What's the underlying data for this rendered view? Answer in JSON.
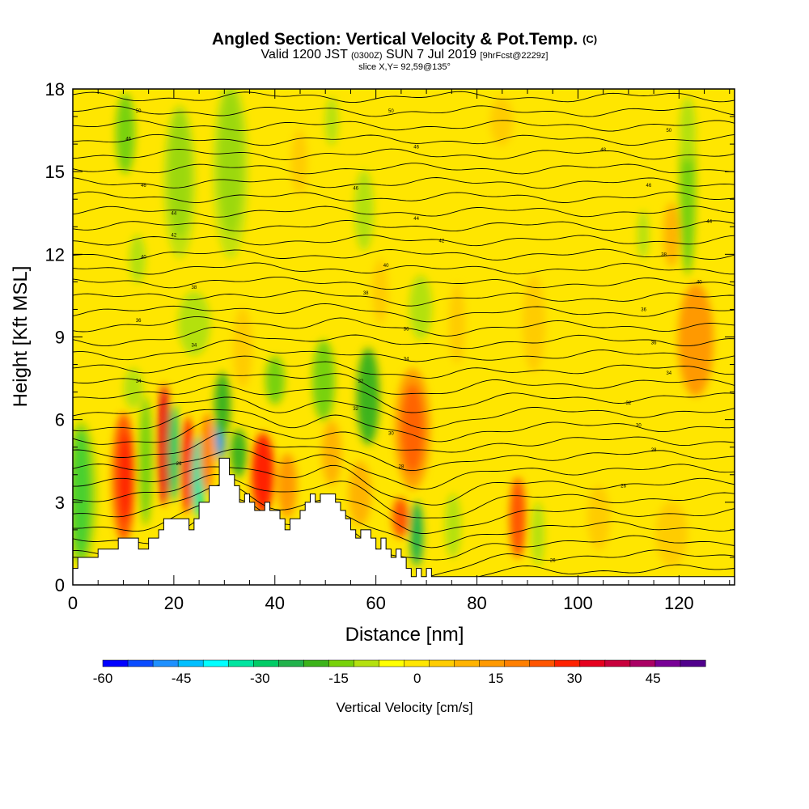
{
  "chart_data": {
    "type": "heatmap",
    "title": "Angled Section: Vertical Velocity & Pot.Temp.",
    "title_mark": "(C)",
    "subtitle_parts": [
      "Valid 1200 JST",
      "(0300Z)",
      "SUN 7 Jul 2019",
      "[9hrFcst@2229z]"
    ],
    "slice_label": "slice X,Y= 92,59@135°",
    "xlabel": "Distance [nm]",
    "ylabel": "Height [Kft MSL]",
    "xlim": [
      0,
      131
    ],
    "ylim": [
      0,
      18
    ],
    "x_ticks": [
      0,
      20,
      40,
      60,
      80,
      100,
      120
    ],
    "y_ticks": [
      0,
      3,
      6,
      9,
      12,
      15,
      18
    ],
    "colorbar": {
      "label": "Vertical Velocity [cm/s]",
      "min": -60,
      "max": 55,
      "tick_labels": [
        "-60",
        "-45",
        "-30",
        "-15",
        "0",
        "15",
        "30",
        "45"
      ],
      "colors": [
        "#0000ff",
        "#0a4cff",
        "#1e90ff",
        "#00bfff",
        "#00ffff",
        "#00e5a0",
        "#00cc66",
        "#22b24c",
        "#3cb31a",
        "#78d20a",
        "#b4e10f",
        "#ffff00",
        "#ffe600",
        "#ffcc00",
        "#ffb300",
        "#ff9900",
        "#ff7f00",
        "#ff5500",
        "#ff2200",
        "#e6001e",
        "#c8003c",
        "#aa0064",
        "#780096",
        "#50008c"
      ]
    },
    "terrain": {
      "x": [
        0,
        1,
        1,
        5,
        5,
        9,
        9,
        13,
        13,
        15,
        15,
        17,
        17,
        18,
        18,
        23,
        23,
        24,
        24,
        25,
        25,
        27,
        27,
        29,
        29,
        31,
        31,
        32,
        32,
        33,
        33,
        34,
        34,
        35,
        35,
        36,
        36,
        38,
        38,
        39,
        39,
        41,
        41,
        42,
        42,
        43,
        43,
        45,
        45,
        46,
        46,
        47,
        47,
        48,
        48,
        49,
        49,
        52,
        52,
        53,
        53,
        54,
        54,
        55,
        55,
        56,
        56,
        57,
        57,
        59,
        59,
        60,
        60,
        61,
        61,
        62,
        62,
        63,
        63,
        64,
        64,
        65,
        65,
        66,
        66,
        67,
        67,
        68,
        68,
        69,
        69,
        70,
        70,
        71,
        71,
        131
      ],
      "y": [
        0.6,
        0.6,
        1.0,
        1.0,
        1.3,
        1.3,
        1.7,
        1.7,
        1.3,
        1.3,
        1.7,
        1.7,
        2.0,
        2.0,
        2.4,
        2.4,
        2.0,
        2.0,
        2.4,
        2.4,
        3.0,
        3.0,
        3.6,
        3.6,
        4.6,
        4.6,
        4.0,
        4.0,
        3.6,
        3.6,
        3.0,
        3.0,
        3.3,
        3.3,
        3.0,
        3.0,
        2.7,
        2.7,
        3.0,
        3.0,
        2.7,
        2.7,
        2.4,
        2.4,
        2.0,
        2.0,
        2.4,
        2.4,
        2.7,
        2.7,
        3.0,
        3.0,
        3.3,
        3.3,
        3.0,
        3.0,
        3.3,
        3.3,
        3.0,
        3.0,
        2.7,
        2.7,
        2.4,
        2.4,
        2.0,
        2.0,
        1.7,
        1.7,
        2.0,
        2.0,
        1.7,
        1.7,
        1.3,
        1.3,
        1.7,
        1.7,
        1.3,
        1.3,
        1.0,
        1.0,
        1.3,
        1.3,
        1.0,
        1.0,
        0.6,
        0.6,
        0.3,
        0.3,
        0.6,
        0.6,
        0.3,
        0.3,
        0.6,
        0.6,
        0.3,
        0.3
      ]
    },
    "isentrope_labels": [
      {
        "x": 13,
        "y": 17.2,
        "text": "50"
      },
      {
        "x": 63,
        "y": 17.2,
        "text": "50"
      },
      {
        "x": 118,
        "y": 16.5,
        "text": "50"
      },
      {
        "x": 11,
        "y": 16.2,
        "text": "46"
      },
      {
        "x": 68,
        "y": 15.9,
        "text": "46"
      },
      {
        "x": 105,
        "y": 15.8,
        "text": "48"
      },
      {
        "x": 14,
        "y": 14.5,
        "text": "46"
      },
      {
        "x": 56,
        "y": 14.4,
        "text": "46"
      },
      {
        "x": 114,
        "y": 14.5,
        "text": "46"
      },
      {
        "x": 20,
        "y": 13.5,
        "text": "44"
      },
      {
        "x": 68,
        "y": 13.3,
        "text": "44"
      },
      {
        "x": 126,
        "y": 13.2,
        "text": "44"
      },
      {
        "x": 20,
        "y": 12.7,
        "text": "42"
      },
      {
        "x": 73,
        "y": 12.5,
        "text": "42"
      },
      {
        "x": 117,
        "y": 12.0,
        "text": "38"
      },
      {
        "x": 14,
        "y": 11.9,
        "text": "40"
      },
      {
        "x": 62,
        "y": 11.6,
        "text": "40"
      },
      {
        "x": 124,
        "y": 11.0,
        "text": "40"
      },
      {
        "x": 24,
        "y": 10.8,
        "text": "38"
      },
      {
        "x": 58,
        "y": 10.6,
        "text": "38"
      },
      {
        "x": 113,
        "y": 10.0,
        "text": "36"
      },
      {
        "x": 13,
        "y": 9.6,
        "text": "36"
      },
      {
        "x": 66,
        "y": 9.3,
        "text": "36"
      },
      {
        "x": 115,
        "y": 8.8,
        "text": "36"
      },
      {
        "x": 24,
        "y": 8.7,
        "text": "34"
      },
      {
        "x": 66,
        "y": 8.2,
        "text": "34"
      },
      {
        "x": 118,
        "y": 7.7,
        "text": "34"
      },
      {
        "x": 13,
        "y": 7.4,
        "text": "34"
      },
      {
        "x": 57,
        "y": 7.4,
        "text": "32"
      },
      {
        "x": 110,
        "y": 6.6,
        "text": "32"
      },
      {
        "x": 56,
        "y": 6.4,
        "text": "32"
      },
      {
        "x": 112,
        "y": 5.8,
        "text": "30"
      },
      {
        "x": 63,
        "y": 5.5,
        "text": "30"
      },
      {
        "x": 115,
        "y": 4.9,
        "text": "28"
      },
      {
        "x": 65,
        "y": 4.3,
        "text": "28"
      },
      {
        "x": 109,
        "y": 3.6,
        "text": "26"
      },
      {
        "x": 21,
        "y": 4.4,
        "text": "26"
      },
      {
        "x": 95,
        "y": 0.9,
        "text": "26"
      }
    ]
  }
}
